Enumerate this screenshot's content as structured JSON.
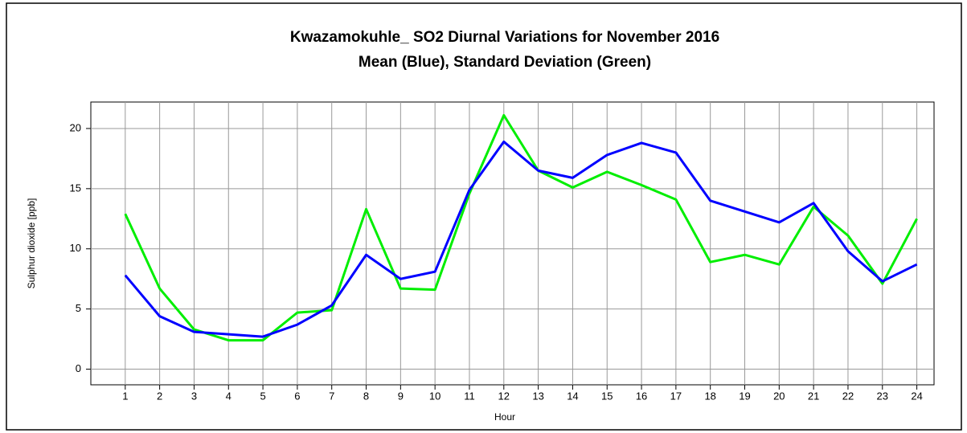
{
  "chart_data": {
    "type": "line",
    "title": "Kwazamokuhle_ SO2 Diurnal Variations for November 2016",
    "subtitle": "Mean (Blue), Standard Deviation (Green)",
    "x_label": "Hour",
    "y_label": "Sulphur dioxide  [ppb]",
    "x": [
      1,
      2,
      3,
      4,
      5,
      6,
      7,
      8,
      9,
      10,
      11,
      12,
      13,
      14,
      15,
      16,
      17,
      18,
      19,
      20,
      21,
      22,
      23,
      24
    ],
    "series": [
      {
        "color": "#0000ff",
        "values": [
          7.8,
          4.4,
          3.1,
          2.9,
          2.7,
          3.7,
          5.3,
          9.5,
          7.5,
          8.1,
          14.9,
          18.9,
          16.5,
          15.9,
          17.8,
          18.8,
          18.0,
          14.0,
          13.1,
          12.2,
          13.8,
          9.8,
          7.3,
          8.7
        ]
      },
      {
        "color": "#00ee00",
        "values": [
          12.9,
          6.7,
          3.3,
          2.4,
          2.4,
          4.7,
          4.9,
          13.3,
          6.7,
          6.6,
          14.6,
          21.1,
          16.5,
          15.1,
          16.4,
          15.3,
          14.1,
          8.9,
          9.5,
          8.7,
          13.5,
          11.1,
          7.1,
          12.5
        ]
      }
    ],
    "xlim": [
      0,
      24.5
    ],
    "ylim": [
      -1.3,
      22.2
    ],
    "xticks": [
      1,
      2,
      3,
      4,
      5,
      6,
      7,
      8,
      9,
      10,
      11,
      12,
      13,
      14,
      15,
      16,
      17,
      18,
      19,
      20,
      21,
      22,
      23,
      24
    ],
    "yticks": [
      0,
      5,
      10,
      15,
      20
    ],
    "grid": true
  }
}
